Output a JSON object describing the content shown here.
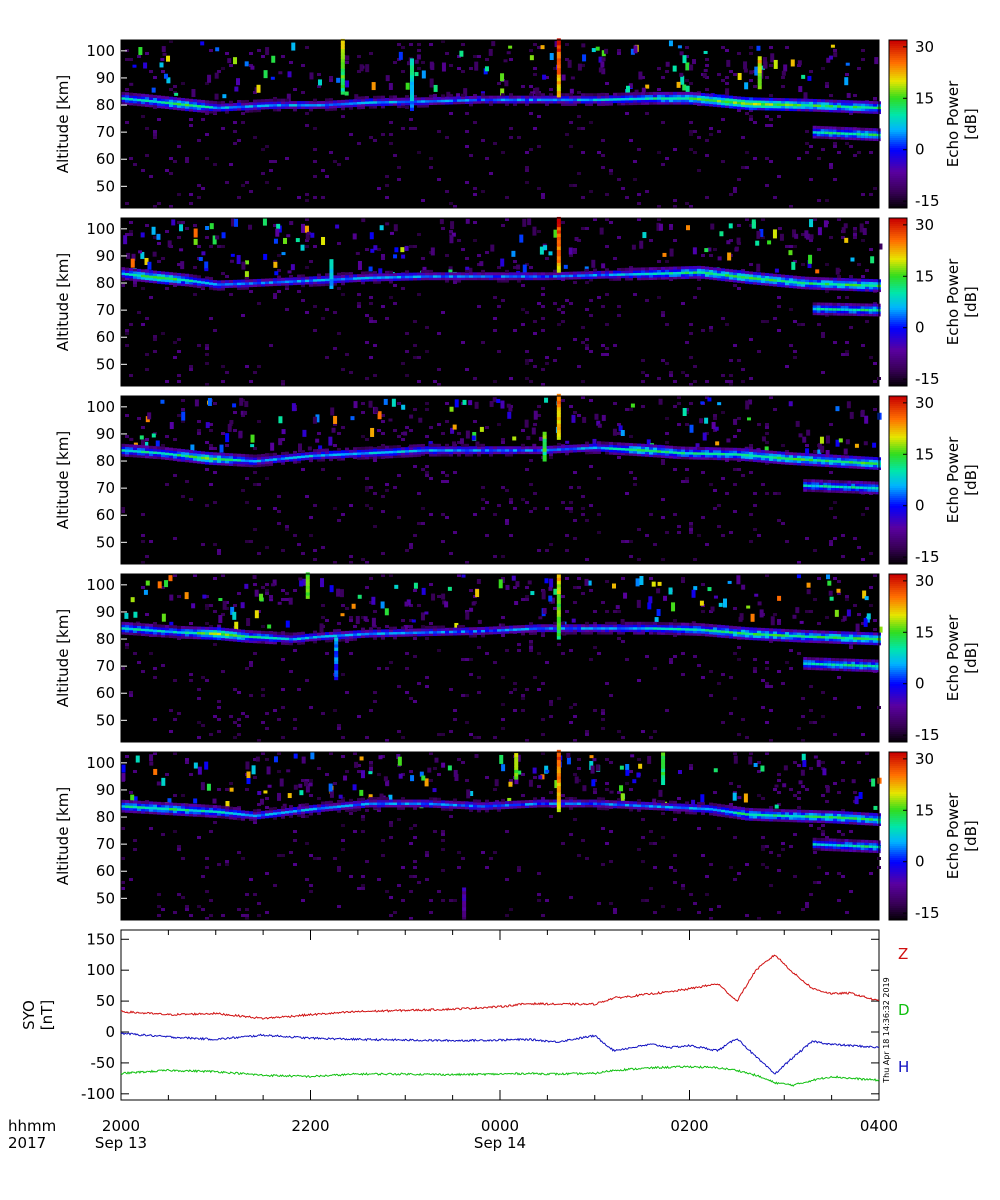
{
  "chart_data": [
    {
      "type": "heatmap",
      "panel": 1,
      "ylabel": "Altitude [km]",
      "yticks": [
        50,
        60,
        70,
        80,
        90,
        100
      ],
      "ylim": [
        42,
        104
      ],
      "colorbar": {
        "label_line1": "Echo Power",
        "label_line2": "[dB]",
        "ticks": [
          30,
          15,
          0,
          -15
        ],
        "range": [
          -17,
          32
        ]
      },
      "layers": [
        {
          "points": [
            [
              0,
              82.5
            ],
            [
              0.3,
              81.5
            ],
            [
              0.7,
              80
            ],
            [
              1.0,
              79
            ],
            [
              1.3,
              79.5
            ],
            [
              1.6,
              80
            ],
            [
              2.1,
              80
            ],
            [
              2.6,
              81
            ],
            [
              3.3,
              81.5
            ],
            [
              3.8,
              82
            ],
            [
              4.3,
              82
            ],
            [
              5.0,
              82
            ],
            [
              5.6,
              82.5
            ],
            [
              6.0,
              82.5
            ],
            [
              6.6,
              80.5
            ],
            [
              7.2,
              80
            ],
            [
              8.0,
              79
            ]
          ],
          "power": [
            8,
            10,
            14,
            6,
            5,
            6,
            3,
            6,
            4,
            3,
            4,
            6,
            10,
            14,
            18,
            14,
            12
          ]
        },
        {
          "points": [
            [
              7.3,
              70
            ],
            [
              8.0,
              69
            ]
          ],
          "power": [
            10,
            12
          ]
        }
      ],
      "spikes": [
        [
          2.32,
          84,
          104,
          20
        ],
        [
          3.05,
          78,
          97,
          12
        ],
        [
          4.6,
          83,
          104,
          30
        ],
        [
          6.72,
          86,
          97,
          22
        ]
      ]
    },
    {
      "type": "heatmap",
      "panel": 2,
      "ylabel": "Altitude [km]",
      "yticks": [
        50,
        60,
        70,
        80,
        90,
        100
      ],
      "ylim": [
        42,
        104
      ],
      "colorbar": {
        "label_line1": "Echo Power",
        "label_line2": "[dB]",
        "ticks": [
          30,
          15,
          0,
          -15
        ],
        "range": [
          -17,
          32
        ]
      },
      "layers": [
        {
          "points": [
            [
              0,
              83.5
            ],
            [
              0.4,
              82
            ],
            [
              0.7,
              81
            ],
            [
              1.0,
              79.5
            ],
            [
              1.4,
              80
            ],
            [
              2.0,
              81
            ],
            [
              2.6,
              82
            ],
            [
              3.2,
              82.5
            ],
            [
              3.8,
              82.5
            ],
            [
              4.5,
              82.5
            ],
            [
              5.0,
              83
            ],
            [
              5.6,
              83.5
            ],
            [
              6.1,
              84
            ],
            [
              6.6,
              82
            ],
            [
              7.2,
              80
            ],
            [
              8.0,
              79
            ]
          ],
          "power": [
            9,
            16,
            10,
            5,
            4,
            5,
            5,
            4,
            3,
            3,
            4,
            9,
            13,
            14,
            12,
            14
          ]
        },
        {
          "points": [
            [
              7.3,
              70.5
            ],
            [
              8.0,
              70
            ]
          ],
          "power": [
            10,
            12
          ]
        }
      ],
      "spikes": [
        [
          4.6,
          84,
          104,
          30
        ],
        [
          2.2,
          78,
          88,
          10
        ]
      ]
    },
    {
      "type": "heatmap",
      "panel": 3,
      "ylabel": "Altitude [km]",
      "yticks": [
        50,
        60,
        70,
        80,
        90,
        100
      ],
      "ylim": [
        42,
        104
      ],
      "colorbar": {
        "label_line1": "Echo Power",
        "label_line2": "[dB]",
        "ticks": [
          30,
          15,
          0,
          -15
        ],
        "range": [
          -17,
          32
        ]
      },
      "layers": [
        {
          "points": [
            [
              0,
              84
            ],
            [
              0.4,
              83
            ],
            [
              0.9,
              81
            ],
            [
              1.4,
              80
            ],
            [
              2.0,
              82
            ],
            [
              2.6,
              83
            ],
            [
              3.2,
              84
            ],
            [
              3.8,
              84
            ],
            [
              4.4,
              84
            ],
            [
              5.0,
              85
            ],
            [
              5.5,
              84
            ],
            [
              5.9,
              83
            ],
            [
              6.5,
              82.5
            ],
            [
              7.0,
              81
            ],
            [
              7.5,
              80
            ],
            [
              8.0,
              79
            ]
          ],
          "power": [
            10,
            9,
            16,
            5,
            6,
            7,
            6,
            4,
            3,
            6,
            14,
            10,
            12,
            14,
            13,
            14
          ]
        },
        {
          "points": [
            [
              7.2,
              71
            ],
            [
              8.0,
              70
            ]
          ],
          "power": [
            9,
            11
          ]
        }
      ],
      "spikes": [
        [
          4.6,
          88,
          104,
          26
        ],
        [
          4.45,
          80,
          90,
          16
        ]
      ]
    },
    {
      "type": "heatmap",
      "panel": 4,
      "ylabel": "Altitude [km]",
      "yticks": [
        50,
        60,
        70,
        80,
        90,
        100
      ],
      "ylim": [
        42,
        104
      ],
      "colorbar": {
        "label_line1": "Echo Power",
        "label_line2": "[dB]",
        "ticks": [
          30,
          15,
          0,
          -15
        ],
        "range": [
          -17,
          32
        ]
      },
      "layers": [
        {
          "points": [
            [
              0,
              84
            ],
            [
              0.6,
              82.5
            ],
            [
              1.0,
              82
            ],
            [
              1.3,
              81
            ],
            [
              1.8,
              80
            ],
            [
              2.1,
              81
            ],
            [
              2.6,
              82
            ],
            [
              3.2,
              82.5
            ],
            [
              3.8,
              83
            ],
            [
              4.4,
              84
            ],
            [
              5.0,
              84
            ],
            [
              5.6,
              84
            ],
            [
              6.1,
              83.5
            ],
            [
              6.6,
              82
            ],
            [
              7.2,
              81
            ],
            [
              8.0,
              80
            ]
          ],
          "power": [
            10,
            8,
            18,
            12,
            6,
            5,
            5,
            4,
            3,
            4,
            4,
            8,
            10,
            14,
            12,
            14
          ]
        },
        {
          "points": [
            [
              7.2,
              71
            ],
            [
              8.0,
              70
            ]
          ],
          "power": [
            10,
            12
          ]
        }
      ],
      "spikes": [
        [
          4.6,
          80,
          104,
          22
        ],
        [
          2.25,
          65,
          80,
          6
        ],
        [
          1.95,
          95,
          104,
          18
        ]
      ]
    },
    {
      "type": "heatmap",
      "panel": 5,
      "ylabel": "Altitude [km]",
      "yticks": [
        50,
        60,
        70,
        80,
        90,
        100
      ],
      "ylim": [
        42,
        104
      ],
      "colorbar": {
        "label_line1": "Echo Power",
        "label_line2": "[dB]",
        "ticks": [
          30,
          15,
          0,
          -15
        ],
        "range": [
          -17,
          32
        ]
      },
      "layers": [
        {
          "points": [
            [
              0,
              84
            ],
            [
              0.5,
              83
            ],
            [
              1.0,
              82
            ],
            [
              1.4,
              80.5
            ],
            [
              2.0,
              83
            ],
            [
              2.6,
              85
            ],
            [
              3.2,
              85
            ],
            [
              3.8,
              84
            ],
            [
              4.4,
              85
            ],
            [
              5.0,
              85
            ],
            [
              5.6,
              84
            ],
            [
              6.2,
              83
            ],
            [
              6.6,
              81
            ],
            [
              7.0,
              80.5
            ],
            [
              7.5,
              80
            ],
            [
              8.0,
              79
            ]
          ],
          "power": [
            10,
            12,
            9,
            5,
            5,
            4,
            4,
            4,
            3,
            3,
            4,
            6,
            12,
            11,
            13,
            13
          ]
        },
        {
          "points": [
            [
              7.3,
              70
            ],
            [
              8.0,
              69
            ]
          ],
          "power": [
            8,
            12
          ]
        }
      ],
      "spikes": [
        [
          4.6,
          82,
          104,
          28
        ],
        [
          4.15,
          94,
          103,
          18
        ],
        [
          5.7,
          92,
          103,
          16
        ],
        [
          3.6,
          42,
          54,
          -5
        ]
      ]
    },
    {
      "type": "line",
      "panel": 6,
      "ylabel_line1": "SYO",
      "ylabel_line2": "[nT]",
      "ylim": [
        -110,
        165
      ],
      "yticks": [
        150,
        100,
        50,
        0,
        -50,
        -100
      ],
      "x_hours_points": [
        0,
        0.5,
        1.0,
        1.5,
        2.0,
        2.5,
        3.0,
        3.5,
        4.0,
        4.3,
        4.6,
        5.0,
        5.2,
        5.4,
        5.6,
        5.8,
        6.0,
        6.3,
        6.5,
        6.7,
        6.9,
        7.1,
        7.3,
        7.5,
        7.7,
        8.0
      ],
      "series": [
        {
          "name": "Z",
          "color": "#d01010",
          "values": [
            33,
            28,
            30,
            22,
            28,
            33,
            35,
            37,
            41,
            46,
            45,
            45,
            55,
            58,
            62,
            65,
            70,
            78,
            50,
            100,
            125,
            95,
            70,
            62,
            63,
            50
          ]
        },
        {
          "name": "D",
          "color": "#10c010",
          "values": [
            -67,
            -62,
            -64,
            -70,
            -72,
            -68,
            -68,
            -69,
            -68,
            -67,
            -68,
            -67,
            -62,
            -60,
            -58,
            -57,
            -56,
            -58,
            -62,
            -70,
            -82,
            -86,
            -78,
            -72,
            -75,
            -78
          ]
        },
        {
          "name": "H",
          "color": "#1010c0",
          "values": [
            -2,
            -8,
            -12,
            -5,
            -10,
            -12,
            -13,
            -14,
            -13,
            -12,
            -16,
            -6,
            -30,
            -25,
            -20,
            -25,
            -22,
            -30,
            -10,
            -40,
            -68,
            -40,
            -15,
            -20,
            -22,
            -25
          ]
        }
      ]
    }
  ],
  "x_axis": {
    "row1_label": "hhmm",
    "row2_label": "2017",
    "ticks": [
      {
        "hour": 0,
        "time": "2000",
        "date": "Sep 13"
      },
      {
        "hour": 2,
        "time": "2200",
        "date": ""
      },
      {
        "hour": 4,
        "time": "0000",
        "date": "Sep 14"
      },
      {
        "hour": 6,
        "time": "0200",
        "date": ""
      },
      {
        "hour": 8,
        "time": "0400",
        "date": ""
      }
    ]
  },
  "timestamp": "Thu Apr 18 14:36:32 2019",
  "colors": {
    "background": "#000000",
    "axis": "#000000"
  }
}
